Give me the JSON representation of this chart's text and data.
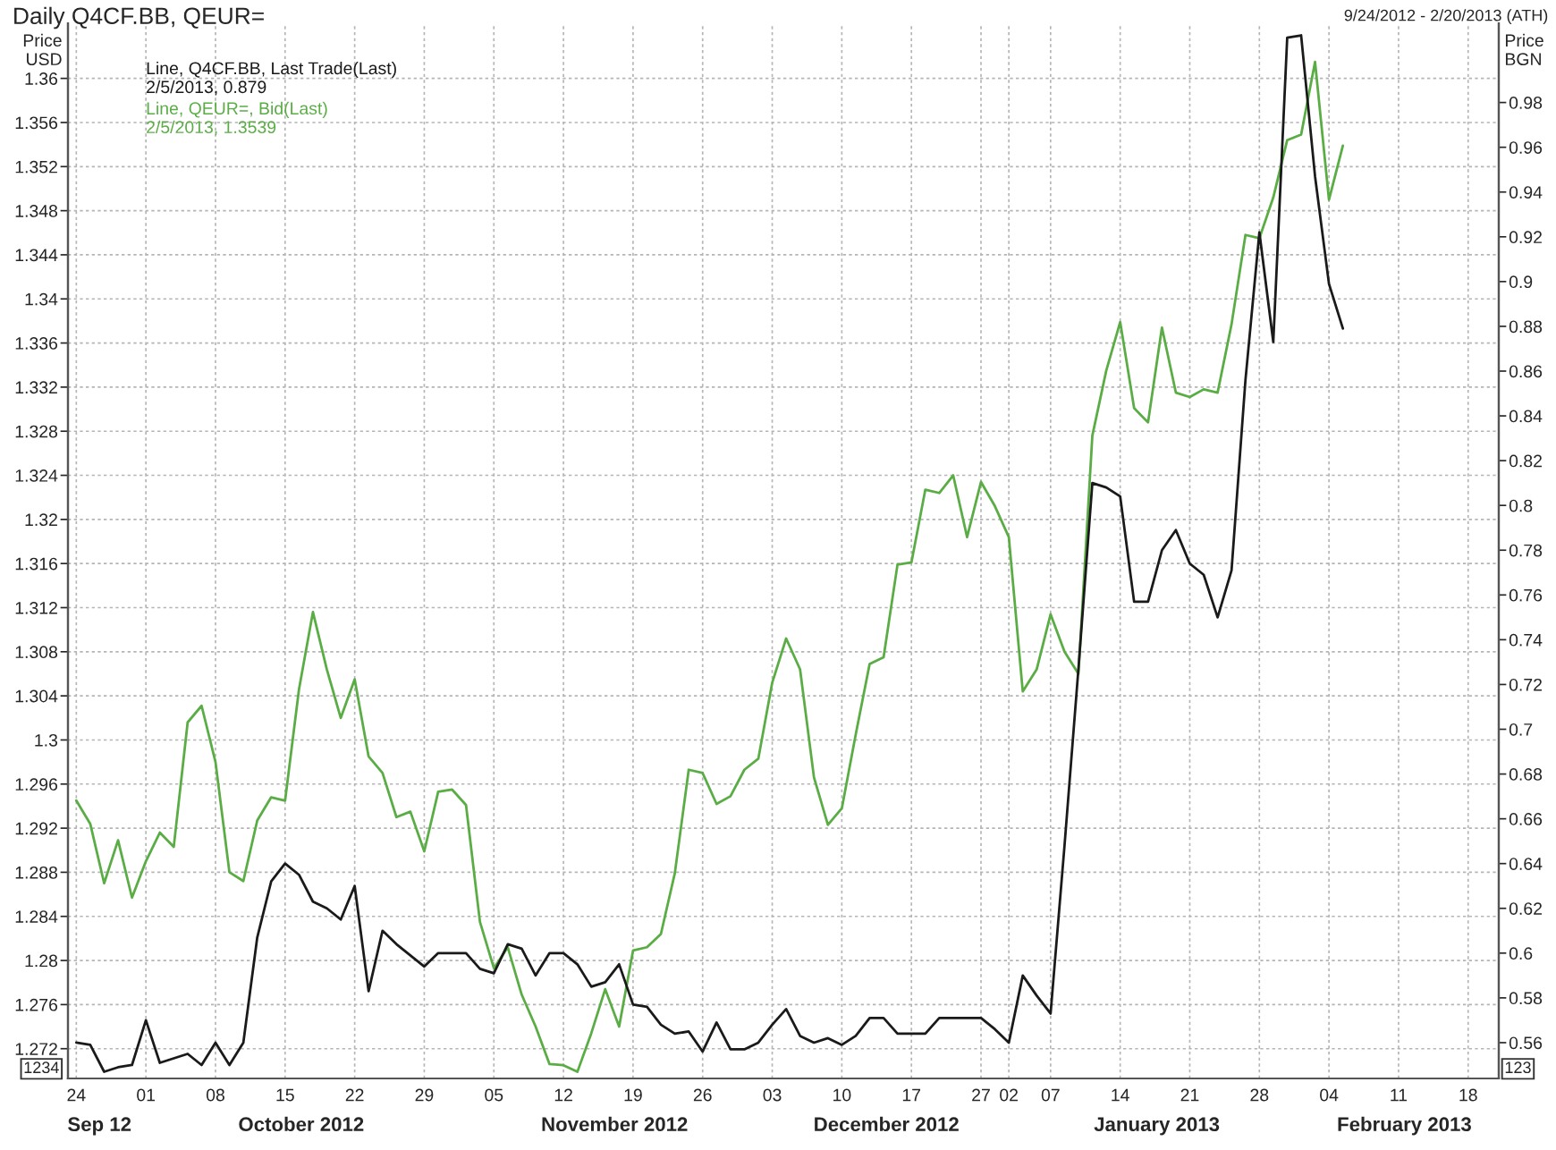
{
  "chart_data": {
    "type": "line",
    "title": "Daily Q4CF.BB, QEUR=",
    "subtitle": "9/24/2012 - 2/20/2013 (ATH)",
    "ylabel": "Price\nUSD",
    "y2label": "Price\nBGN",
    "annotations": [
      "1234",
      "123",
      "Sep 12",
      "October 2012",
      "November 2012",
      "December 2012",
      "January 2013",
      "February 2013"
    ],
    "categories": [
      "24",
      null,
      null,
      null,
      null,
      "01",
      null,
      null,
      null,
      null,
      "08",
      null,
      null,
      null,
      null,
      "15",
      null,
      null,
      null,
      null,
      "22",
      null,
      null,
      null,
      null,
      "29",
      null,
      null,
      null,
      null,
      "05",
      null,
      null,
      null,
      null,
      "12",
      null,
      null,
      null,
      null,
      "19",
      null,
      null,
      null,
      null,
      "26",
      null,
      null,
      null,
      null,
      "03",
      null,
      null,
      null,
      null,
      "10",
      null,
      null,
      null,
      null,
      "17",
      null,
      null,
      null,
      null,
      "27",
      null,
      "02",
      null,
      null,
      "07",
      null,
      null,
      null,
      null,
      "14",
      null,
      null,
      null,
      null,
      "21",
      null,
      null,
      null,
      null,
      "28",
      null,
      null,
      null,
      null,
      "04",
      null,
      null,
      null,
      null,
      "11",
      null,
      null,
      null,
      null,
      "18",
      null,
      null
    ],
    "series": [
      {
        "name": "Line, Q4CF.BB, Last Trade(Last)\n2/5/2013, 0.879",
        "color": "#1a1a1a",
        "axis": "y2",
        "values": [
          0.56,
          0.559,
          0.547,
          0.549,
          0.55,
          0.57,
          0.551,
          0.553,
          0.555,
          0.55,
          0.56,
          0.55,
          0.56,
          0.607,
          0.632,
          0.64,
          0.635,
          0.623,
          0.62,
          0.615,
          0.63,
          0.583,
          0.61,
          0.604,
          0.599,
          0.594,
          0.6,
          0.6,
          0.6,
          0.593,
          0.591,
          0.604,
          0.602,
          0.59,
          0.6,
          0.6,
          0.595,
          0.585,
          0.587,
          0.595,
          0.577,
          0.576,
          0.568,
          0.564,
          0.565,
          0.556,
          0.569,
          0.557,
          0.557,
          0.56,
          0.568,
          0.575,
          0.563,
          0.56,
          0.562,
          0.559,
          0.563,
          0.571,
          0.571,
          0.564,
          0.564,
          0.564,
          0.571,
          0.571,
          0.571,
          0.571,
          0.566,
          0.56,
          0.59,
          0.581,
          0.573,
          0.648,
          0.727,
          0.81,
          0.808,
          0.804,
          0.757,
          0.757,
          0.78,
          0.789,
          0.774,
          0.769,
          0.75,
          0.771,
          0.856,
          0.922,
          0.873,
          1.009,
          1.01,
          0.947,
          0.899,
          0.879,
          null,
          null,
          null,
          null,
          null,
          null,
          null,
          null,
          null,
          null,
          null
        ]
      },
      {
        "name": "Line, QEUR=, Bid(Last)\n2/5/2013, 1.3539",
        "color": "#5aad45",
        "axis": "y",
        "values": [
          1.2945,
          1.2924,
          1.287,
          1.2909,
          1.2857,
          1.289,
          1.2916,
          1.2903,
          1.3016,
          1.3031,
          1.298,
          1.288,
          1.2872,
          1.2927,
          1.2948,
          1.2945,
          1.3046,
          1.3116,
          1.3064,
          1.302,
          1.3055,
          1.2985,
          1.297,
          1.293,
          1.2935,
          1.2899,
          1.2953,
          1.2955,
          1.2941,
          1.2835,
          1.2793,
          1.2812,
          1.2769,
          1.274,
          1.2706,
          1.2705,
          1.2699,
          1.2734,
          1.2774,
          1.274,
          1.2809,
          1.2812,
          1.2824,
          1.2879,
          1.2973,
          1.297,
          1.2942,
          1.2949,
          1.2973,
          1.2983,
          1.3052,
          1.3092,
          1.3064,
          1.2966,
          1.2923,
          1.2938,
          1.3005,
          1.3069,
          1.3075,
          1.3159,
          1.3161,
          1.3227,
          1.3224,
          1.324,
          1.3184,
          1.3234,
          1.3212,
          1.3184,
          1.3044,
          1.3064,
          1.3114,
          1.308,
          1.306,
          1.3276,
          1.3335,
          1.3379,
          1.3301,
          1.3288,
          1.3374,
          1.3315,
          1.3311,
          1.3318,
          1.3315,
          1.3377,
          1.3458,
          1.3455,
          1.3492,
          1.3544,
          1.3549,
          1.3615,
          1.349,
          1.3539,
          null,
          null,
          null,
          null,
          null,
          null,
          null,
          null,
          null,
          null,
          null
        ]
      }
    ],
    "ylim": [
      1.2693,
      1.365
    ],
    "yticks": [
      1.272,
      1.276,
      1.28,
      1.284,
      1.288,
      1.292,
      1.296,
      1.3,
      1.304,
      1.308,
      1.312,
      1.316,
      1.32,
      1.324,
      1.328,
      1.332,
      1.336,
      1.34,
      1.344,
      1.348,
      1.352,
      1.356,
      1.36
    ],
    "y2lim": [
      0.544,
      1.0154
    ],
    "y2ticks": [
      0.56,
      0.58,
      0.6,
      0.62,
      0.64,
      0.66,
      0.68,
      0.7,
      0.72,
      0.74,
      0.76,
      0.78,
      0.8,
      0.82,
      0.84,
      0.86,
      0.88,
      0.9,
      0.92,
      0.94,
      0.96,
      0.98
    ],
    "grid": true,
    "legend": "top left",
    "marker": "none",
    "line_style": "solid"
  }
}
